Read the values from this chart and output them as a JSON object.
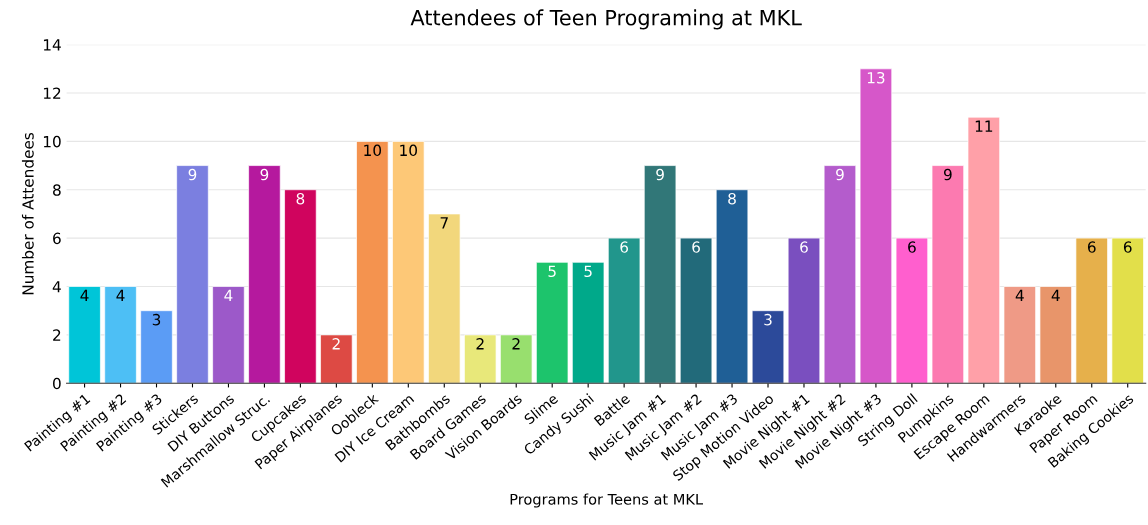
{
  "chart_data": {
    "type": "bar",
    "title": "Attendees of Teen Programing at MKL",
    "xlabel": "Programs for Teens at MKL",
    "ylabel": "Number of Attendees",
    "categories": [
      "Painting #1",
      "Painting #2",
      "Painting #3",
      "Stickers",
      "DIY Buttons",
      "Marshmallow Struc.",
      "Cupcakes",
      "Paper Airplanes",
      "Oobleck",
      "DIY Ice Cream",
      "Bathbombs",
      "Board Games",
      "Vision Boards",
      "Slime",
      "Candy Sushi",
      "Battle",
      "Music Jam #1",
      "Music Jam #2",
      "Music Jam #3",
      "Stop Motion Video",
      "Movie Night #1",
      "Movie Night #2",
      "Movie Night #3",
      "String Doll",
      "Pumpkins",
      "Escape Room",
      "Handwarmers",
      "Karaoke",
      "Paper Room",
      "Baking Cookies"
    ],
    "values": [
      4,
      4,
      3,
      9,
      4,
      9,
      8,
      2,
      10,
      10,
      7,
      2,
      2,
      5,
      5,
      6,
      9,
      6,
      8,
      3,
      6,
      9,
      13,
      6,
      9,
      11,
      4,
      4,
      6,
      6
    ],
    "colors": [
      "#00c5d8",
      "#4dbff5",
      "#5b9cf5",
      "#7b7fe0",
      "#9c59c9",
      "#b5199e",
      "#d0045e",
      "#dd4a44",
      "#f4934f",
      "#fdc877",
      "#f2d77c",
      "#e8e87a",
      "#98df6e",
      "#1dc46c",
      "#00a98a",
      "#21968c",
      "#317778",
      "#226a7a",
      "#1f5f96",
      "#2c4a9a",
      "#7a4fbf",
      "#b45ccc",
      "#d657c9",
      "#ff5fce",
      "#fc7ab0",
      "#ffa0a8",
      "#ef9a86",
      "#e8956a",
      "#e6b04b",
      "#e2df4a"
    ],
    "ylim": [
      0,
      14
    ],
    "yticks": [
      0,
      2,
      4,
      6,
      8,
      10,
      12,
      14
    ],
    "grid": "y",
    "data_labels": true
  }
}
